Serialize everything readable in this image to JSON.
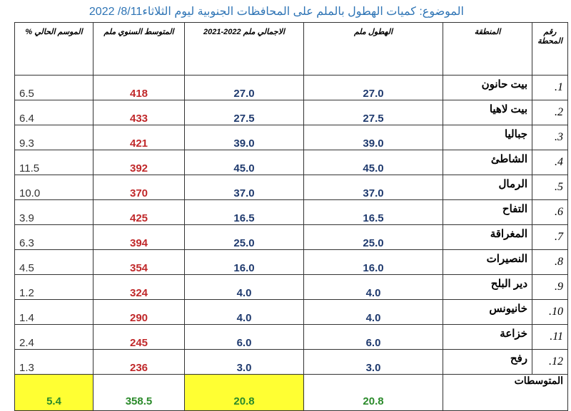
{
  "header": {
    "title": "الموضوع: كميات الهطول بالملم على المحافظات الجنوبية ليوم الثلاثاء8/11/ 2022"
  },
  "table": {
    "columns": [
      "رقم المحطة",
      "المنطقة",
      "الهطول ملم",
      "الاجمالي ملم 2022-2021",
      "المتوسط السنوي ملم",
      "الموسم الحالي %"
    ],
    "rows": [
      [
        "1.",
        "بيت حانون",
        "27.0",
        "27.0",
        "418",
        "6.5"
      ],
      [
        "2.",
        "بيت لاهيا",
        "27.5",
        "27.5",
        "433",
        "6.4"
      ],
      [
        "3.",
        "جباليا",
        "39.0",
        "39.0",
        "421",
        "9.3"
      ],
      [
        "4.",
        "الشاطئ",
        "45.0",
        "45.0",
        "392",
        "11.5"
      ],
      [
        "5.",
        "الرمال",
        "37.0",
        "37.0",
        "370",
        "10.0"
      ],
      [
        "6.",
        "التفاح",
        "16.5",
        "16.5",
        "425",
        "3.9"
      ],
      [
        "7.",
        "المغراقة",
        "25.0",
        "25.0",
        "394",
        "6.3"
      ],
      [
        "8.",
        "النصيرات",
        "16.0",
        "16.0",
        "354",
        "4.5"
      ],
      [
        "9.",
        "دير البلح",
        "4.0",
        "4.0",
        "324",
        "1.2"
      ],
      [
        "10.",
        "خانيونس",
        "4.0",
        "4.0",
        "290",
        "1.4"
      ],
      [
        "11.",
        "خزاعة",
        "6.0",
        "6.0",
        "245",
        "2.4"
      ],
      [
        "12.",
        "رفح",
        "3.0",
        "3.0",
        "236",
        "1.3"
      ]
    ],
    "footer": [
      "المتوسطات",
      "20.8",
      "20.8",
      "358.5",
      "5.4"
    ]
  }
}
